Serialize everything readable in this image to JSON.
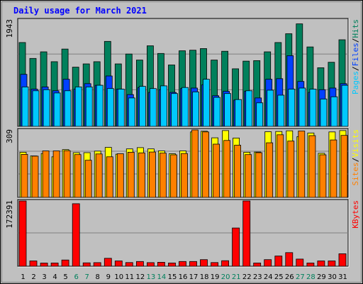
{
  "chart_data": {
    "type": "bar",
    "title": "Daily usage for March 2021",
    "categories": [
      "1",
      "2",
      "3",
      "4",
      "5",
      "6",
      "7",
      "8",
      "9",
      "10",
      "11",
      "12",
      "13",
      "14",
      "15",
      "16",
      "17",
      "18",
      "19",
      "20",
      "21",
      "22",
      "23",
      "24",
      "25",
      "26",
      "27",
      "28",
      "29",
      "30",
      "31"
    ],
    "weekend_days": [
      "6",
      "7",
      "13",
      "14",
      "20",
      "21",
      "27",
      "28"
    ],
    "colors": {
      "hits": "#00805c",
      "files": "#0040ff",
      "pages": "#00c8ff",
      "visits": "#ffff00",
      "sites": "#ff8000",
      "kbytes": "#ff0000",
      "title": "#0000ff",
      "weekend_label": "#00805c",
      "panel_bg": "#c0c0c0",
      "frame_bg": "#c0c0c0"
    },
    "panels": [
      {
        "id": "hits-files-pages",
        "max_label": "1943",
        "legend": [
          {
            "text": "Pages",
            "color": "#00c8ff"
          },
          {
            "text": "/",
            "color": "#000000"
          },
          {
            "text": "Files",
            "color": "#0040ff"
          },
          {
            "text": "/",
            "color": "#000000"
          },
          {
            "text": "Hits",
            "color": "#00805c"
          }
        ],
        "ylim": [
          0,
          1943
        ],
        "series": [
          {
            "name": "Hits",
            "values": [
              1530,
              1240,
              1360,
              1180,
              1410,
              1080,
              1140,
              1180,
              1550,
              1140,
              1320,
              1210,
              1470,
              1330,
              1120,
              1380,
              1390,
              1420,
              1210,
              1370,
              1050,
              1190,
              1200,
              1360,
              1530,
              1690,
              1870,
              1450,
              1070,
              1170,
              1580
            ]
          },
          {
            "name": "Files",
            "values": [
              950,
              680,
              720,
              650,
              860,
              680,
              780,
              750,
              920,
              680,
              580,
              710,
              620,
              670,
              620,
              690,
              700,
              760,
              560,
              640,
              480,
              640,
              520,
              860,
              870,
              1290,
              820,
              620,
              670,
              700,
              780
            ]
          },
          {
            "name": "Pages",
            "values": [
              720,
              650,
              670,
              610,
              650,
              720,
              720,
              750,
              690,
              680,
              520,
              730,
              690,
              740,
              600,
              710,
              630,
              860,
              530,
              600,
              490,
              650,
              430,
              660,
              570,
              680,
              700,
              680,
              500,
              540,
              750
            ]
          }
        ]
      },
      {
        "id": "visits-sites",
        "max_label": "309",
        "legend": [
          {
            "text": "Sites",
            "color": "#ff8000"
          },
          {
            "text": "/",
            "color": "#000000"
          },
          {
            "text": "Visits",
            "color": "#ffff00"
          }
        ],
        "ylim": [
          0,
          309
        ],
        "series": [
          {
            "name": "Visits",
            "values": [
              207,
              190,
              201,
              186,
              219,
              205,
              205,
              212,
              229,
              198,
              222,
              228,
              222,
              213,
              200,
              213,
              300,
              303,
              273,
              306,
              272,
              207,
              208,
              301,
              302,
              305,
              278,
              295,
              202,
              300,
              306
            ]
          },
          {
            "name": "Sites",
            "values": [
              197,
              189,
              213,
              213,
              214,
              196,
              170,
              199,
              186,
              200,
              207,
              204,
              208,
              203,
              195,
              201,
              309,
              300,
              244,
              261,
              239,
              196,
              205,
              250,
              287,
              258,
              304,
              283,
              195,
              263,
              284
            ]
          }
        ]
      },
      {
        "id": "kbytes",
        "max_label": "172391",
        "legend": [
          {
            "text": "KBytes",
            "color": "#ff0000"
          }
        ],
        "ylim": [
          0,
          172391
        ],
        "series": [
          {
            "name": "KBytes",
            "values": [
              172391,
              14000,
              8500,
              8700,
              16500,
              165000,
              9000,
              9500,
              21000,
              14000,
              9800,
              12600,
              9600,
              10500,
              8700,
              12600,
              12600,
              17500,
              9800,
              14700,
              101000,
              172391,
              8700,
              17500,
              27000,
              36000,
              19000,
              8700,
              14000,
              14000,
              33000
            ]
          }
        ]
      }
    ]
  }
}
